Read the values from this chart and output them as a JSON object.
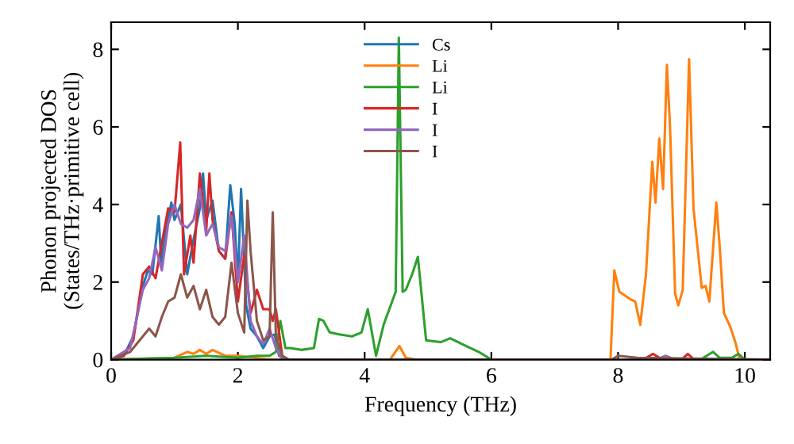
{
  "chart_data": {
    "type": "line",
    "xlabel": "Frequency (THz)",
    "ylabel": "Phonon projected DOS\n(States/THz·primitive cell)",
    "xlim": [
      0,
      10.4
    ],
    "ylim": [
      0,
      8.7
    ],
    "xticks": [
      0,
      2,
      4,
      6,
      8,
      10
    ],
    "yticks": [
      0,
      2,
      4,
      6,
      8
    ],
    "grid": false,
    "legend": "top",
    "marker": "none",
    "line_style": "solid",
    "series": [
      {
        "name": "Cs",
        "color": "#1f77b4",
        "x": [
          0,
          0.2,
          0.35,
          0.5,
          0.58,
          0.65,
          0.75,
          0.79,
          0.85,
          0.95,
          1.0,
          1.1,
          1.2,
          1.3,
          1.4,
          1.45,
          1.5,
          1.6,
          1.7,
          1.8,
          1.88,
          1.95,
          2.0,
          2.05,
          2.13,
          2.2,
          2.3,
          2.4,
          2.5,
          2.58,
          2.65,
          2.75,
          3.0,
          10.4
        ],
        "values": [
          0,
          0.1,
          0.6,
          1.9,
          2.3,
          2.2,
          3.7,
          2.5,
          3.2,
          4.05,
          3.6,
          4.0,
          2.2,
          3.1,
          3.9,
          4.8,
          3.6,
          4.1,
          2.8,
          2.6,
          4.5,
          3.5,
          2.0,
          4.4,
          1.4,
          0.8,
          0.6,
          0.3,
          0.6,
          0.65,
          0.1,
          0,
          0,
          0
        ]
      },
      {
        "name": "Li",
        "color": "#ff7f0e",
        "x": [
          0,
          1.0,
          1.2,
          1.3,
          1.4,
          1.5,
          1.6,
          1.8,
          2.0,
          2.5,
          4.4,
          4.55,
          4.65,
          4.8,
          7.88,
          7.94,
          8.02,
          8.2,
          8.27,
          8.35,
          8.44,
          8.54,
          8.59,
          8.65,
          8.71,
          8.77,
          8.82,
          8.9,
          8.95,
          9.02,
          9.12,
          9.19,
          9.32,
          9.38,
          9.44,
          9.55,
          9.6,
          9.67,
          9.77,
          9.85,
          9.92
        ],
        "values": [
          0,
          0.05,
          0.2,
          0.15,
          0.25,
          0.15,
          0.25,
          0.1,
          0.1,
          0,
          0,
          0.35,
          0.05,
          0,
          0,
          2.3,
          1.75,
          1.55,
          1.5,
          0.9,
          2.2,
          5.1,
          4.05,
          5.7,
          4.4,
          7.6,
          6.0,
          1.7,
          1.4,
          1.8,
          7.75,
          3.9,
          1.85,
          1.9,
          1.5,
          4.05,
          3.0,
          1.2,
          0.85,
          0.45,
          0
        ]
      },
      {
        "name": "Li",
        "color": "#2ca02c",
        "x": [
          0,
          1.0,
          1.5,
          2.0,
          2.3,
          2.5,
          2.6,
          2.67,
          2.75,
          2.83,
          3.0,
          3.2,
          3.28,
          3.35,
          3.45,
          3.6,
          3.8,
          3.95,
          4.05,
          4.18,
          4.3,
          4.49,
          4.54,
          4.6,
          4.65,
          4.75,
          4.84,
          4.97,
          5.2,
          5.35,
          5.6,
          5.8,
          6.0,
          7.0,
          9.3,
          9.5,
          9.6,
          9.8,
          9.9,
          10.0,
          10.4
        ],
        "values": [
          0,
          0.05,
          0.1,
          0.05,
          0.1,
          0.1,
          0.2,
          1.0,
          0.3,
          0.3,
          0.25,
          0.3,
          1.05,
          1.0,
          0.7,
          0.65,
          0.6,
          0.7,
          1.3,
          0.1,
          0.9,
          1.75,
          8.3,
          1.75,
          1.8,
          2.2,
          2.65,
          0.5,
          0.45,
          0.55,
          0.35,
          0.2,
          0,
          0,
          0,
          0.2,
          0.05,
          0.05,
          0.15,
          0,
          0
        ]
      },
      {
        "name": "I",
        "color": "#d62728",
        "x": [
          0,
          0.2,
          0.35,
          0.5,
          0.6,
          0.7,
          0.8,
          0.9,
          1.0,
          1.09,
          1.15,
          1.25,
          1.3,
          1.4,
          1.5,
          1.55,
          1.6,
          1.7,
          1.8,
          1.9,
          2.0,
          2.1,
          2.2,
          2.3,
          2.4,
          2.5,
          2.55,
          2.6,
          2.7,
          2.8,
          8.4,
          8.55,
          8.7,
          9.0,
          9.1,
          9.2,
          10.4
        ],
        "values": [
          0,
          0.1,
          0.5,
          2.2,
          2.4,
          2.1,
          3.0,
          3.9,
          3.8,
          5.6,
          2.2,
          3.2,
          2.5,
          4.8,
          3.3,
          4.8,
          3.6,
          2.8,
          2.6,
          3.8,
          1.5,
          2.7,
          1.2,
          1.8,
          1.3,
          1.3,
          1.0,
          1.3,
          0.1,
          0,
          0,
          0.15,
          0,
          0,
          0.15,
          0,
          0
        ]
      },
      {
        "name": "I",
        "color": "#9467bd",
        "x": [
          0,
          0.3,
          0.5,
          0.6,
          0.7,
          0.8,
          0.9,
          1.0,
          1.1,
          1.2,
          1.3,
          1.4,
          1.5,
          1.6,
          1.7,
          1.8,
          1.9,
          2.0,
          2.1,
          2.2,
          2.3,
          2.4,
          2.5,
          2.6,
          2.7,
          8.6,
          8.75,
          8.9,
          10.4
        ],
        "values": [
          0,
          0.3,
          1.8,
          2.1,
          2.9,
          2.3,
          3.5,
          4.0,
          3.5,
          3.4,
          3.6,
          4.4,
          3.2,
          3.5,
          2.9,
          2.8,
          3.7,
          2.0,
          3.2,
          1.0,
          0.6,
          0.4,
          0.8,
          0.3,
          0,
          0,
          0.1,
          0,
          0
        ]
      },
      {
        "name": "I",
        "color": "#8c564b",
        "x": [
          0,
          0.3,
          0.5,
          0.6,
          0.7,
          0.8,
          0.9,
          1.0,
          1.1,
          1.2,
          1.3,
          1.4,
          1.5,
          1.6,
          1.7,
          1.8,
          1.9,
          2.0,
          2.1,
          2.15,
          2.2,
          2.3,
          2.4,
          2.5,
          2.55,
          2.6,
          2.7,
          2.8,
          7.9,
          8.0,
          8.3,
          10.4
        ],
        "values": [
          0,
          0.2,
          0.6,
          0.8,
          0.6,
          1.1,
          1.5,
          1.6,
          2.2,
          1.6,
          1.9,
          1.3,
          1.8,
          1.1,
          0.9,
          1.1,
          2.5,
          1.2,
          0.7,
          4.1,
          2.8,
          1.0,
          0.5,
          0.6,
          3.8,
          0.6,
          0.1,
          0,
          0,
          0.1,
          0.05,
          0
        ]
      }
    ]
  }
}
